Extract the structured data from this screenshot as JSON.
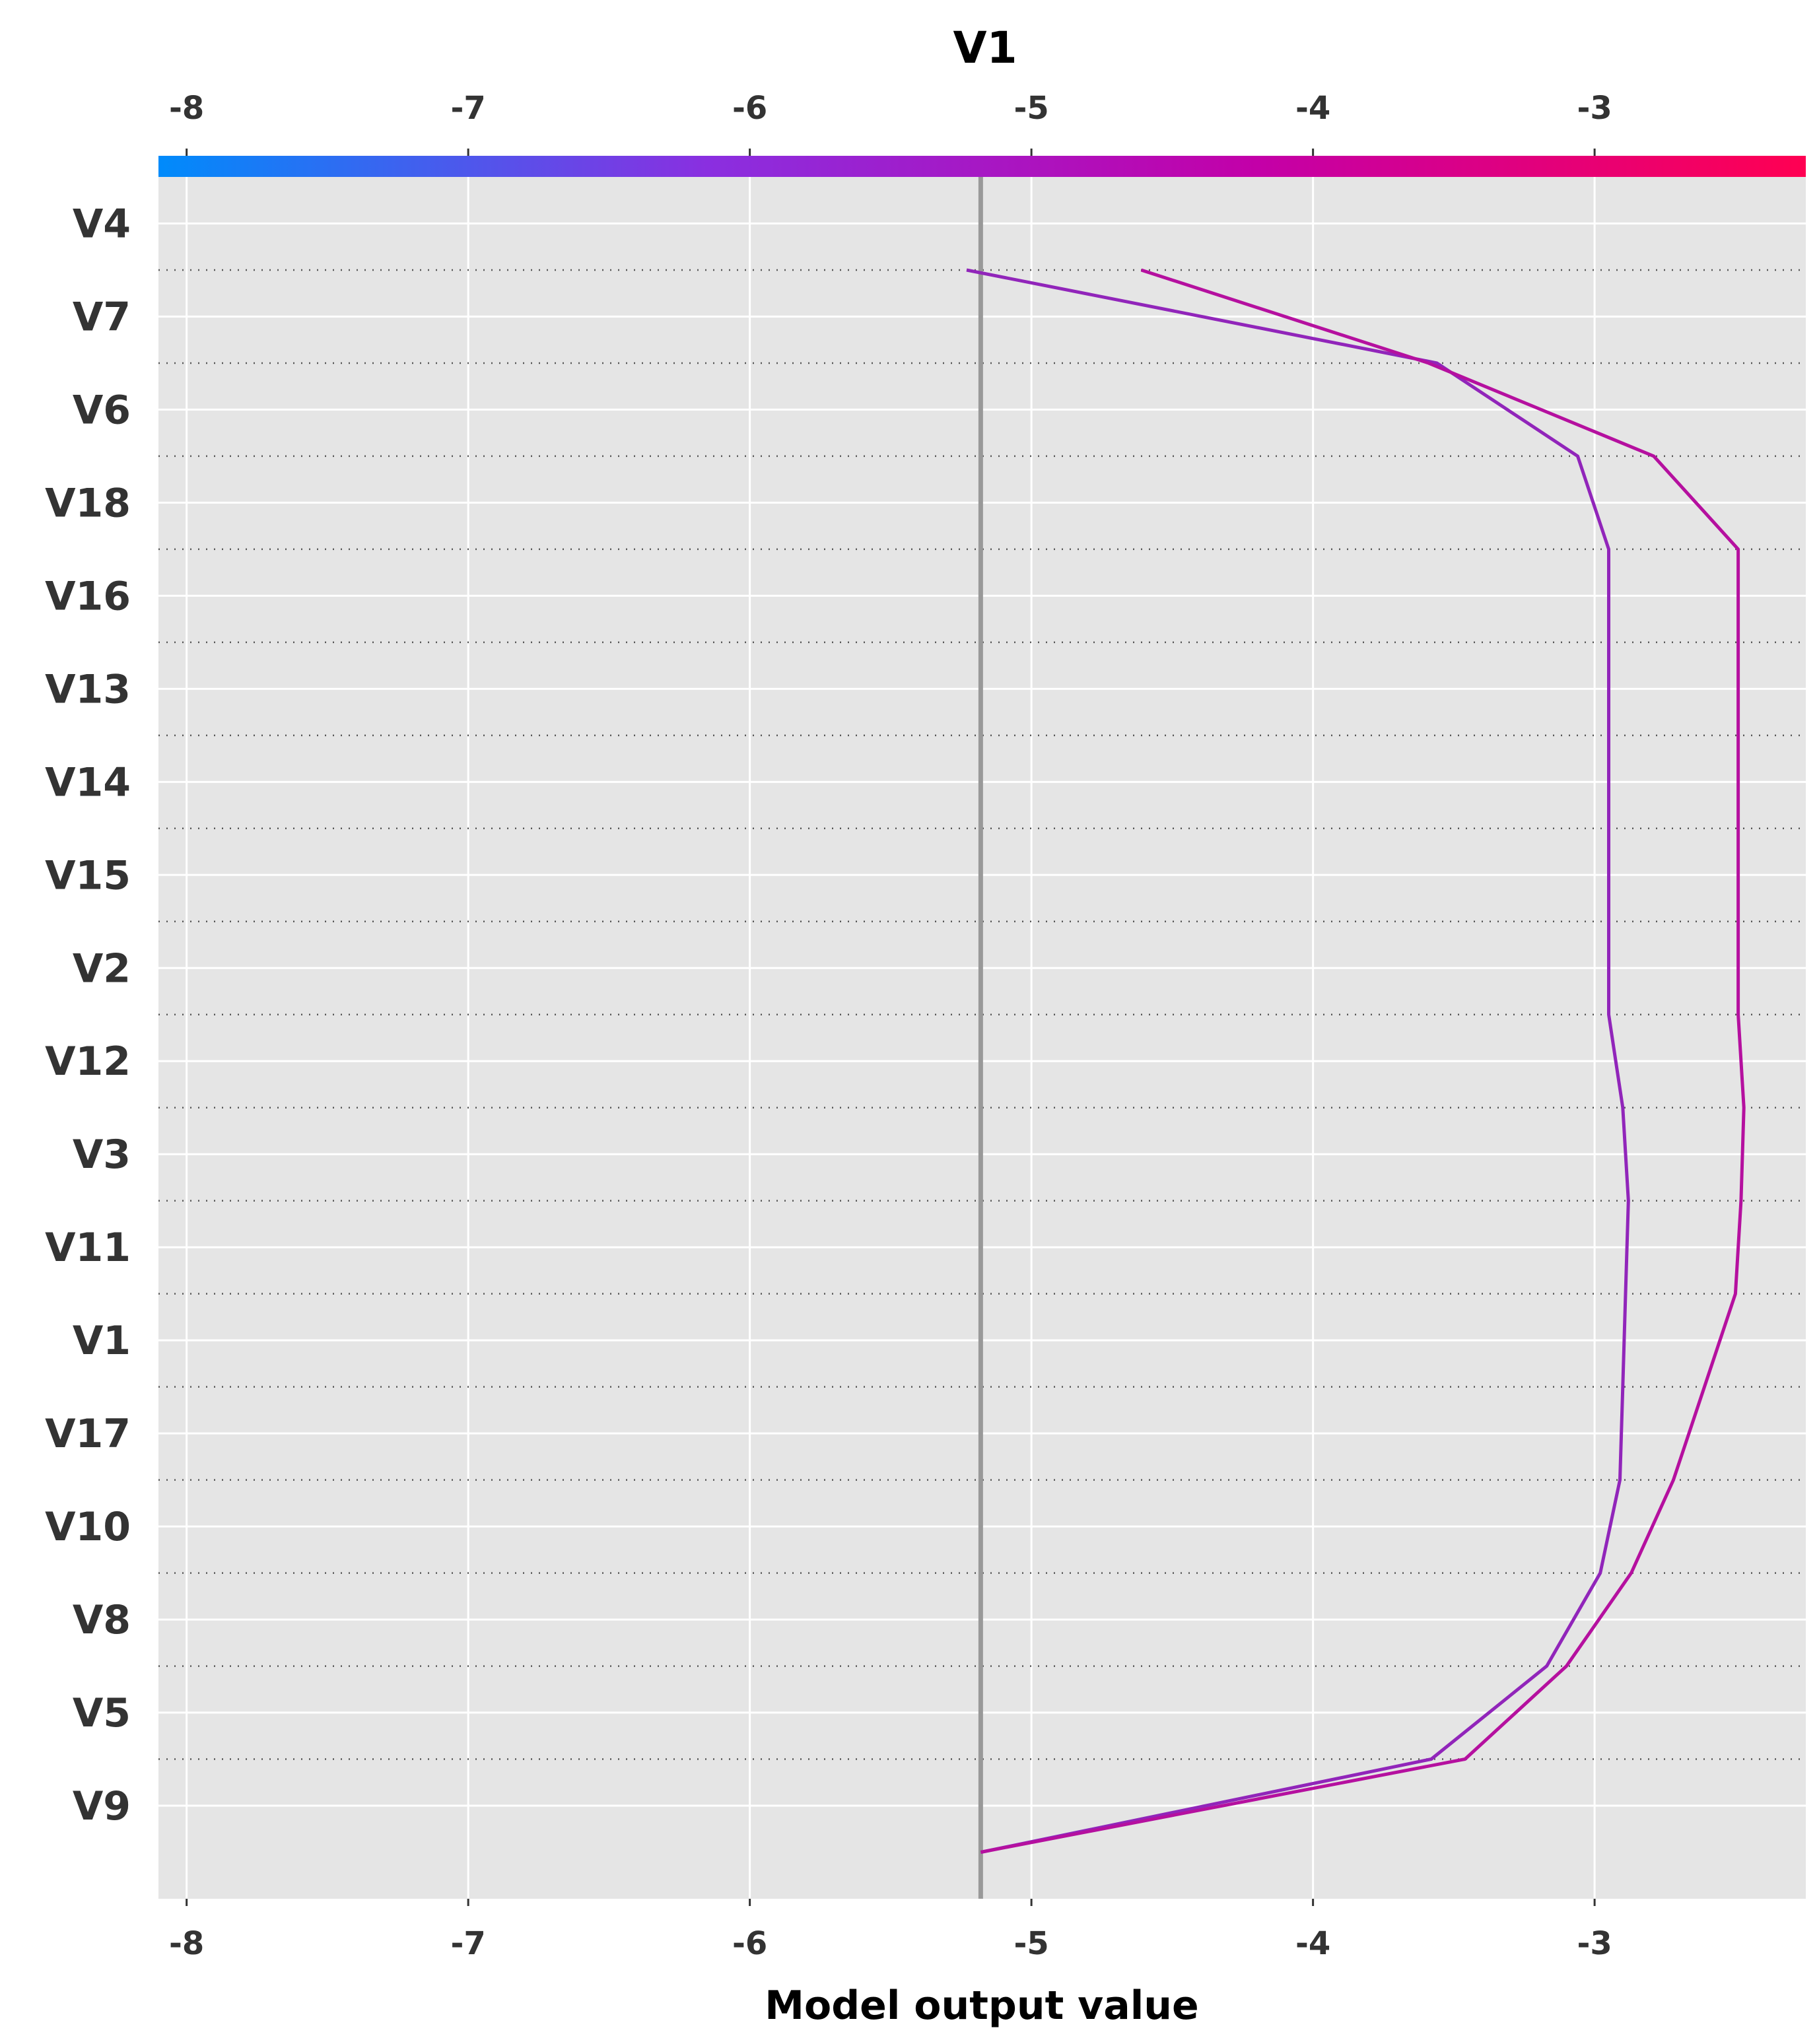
{
  "chart_data": {
    "type": "line",
    "title": "V1",
    "xlabel": "Model output value",
    "xlim": [
      -8.1,
      -2.25
    ],
    "xticks": [
      -8,
      -7,
      -6,
      -5,
      -4,
      -3
    ],
    "base_value": -5.18,
    "features": [
      "V4",
      "V7",
      "V6",
      "V18",
      "V16",
      "V13",
      "V14",
      "V15",
      "V2",
      "V12",
      "V3",
      "V11",
      "V1",
      "V17",
      "V10",
      "V8",
      "V5",
      "V9"
    ],
    "colorbar": {
      "range": [
        -8.1,
        -2.25
      ],
      "colors": [
        "#008bfb",
        "#8a2fe0",
        "#c300a8",
        "#ff0052"
      ]
    },
    "series": [
      {
        "color": "#9125ba",
        "values": [
          -5.18,
          -3.58,
          -3.17,
          -2.98,
          -2.91,
          -2.9,
          -2.89,
          -2.88,
          -2.9,
          -2.95,
          -2.95,
          -2.95,
          -2.95,
          -2.95,
          -2.95,
          -3.06,
          -3.56,
          -5.23
        ]
      },
      {
        "color": "#b5109f",
        "values": [
          -5.18,
          -3.46,
          -3.1,
          -2.87,
          -2.72,
          -2.61,
          -2.5,
          -2.48,
          -2.47,
          -2.49,
          -2.49,
          -2.49,
          -2.49,
          -2.49,
          -2.49,
          -2.79,
          -3.59,
          -4.61
        ]
      }
    ]
  }
}
